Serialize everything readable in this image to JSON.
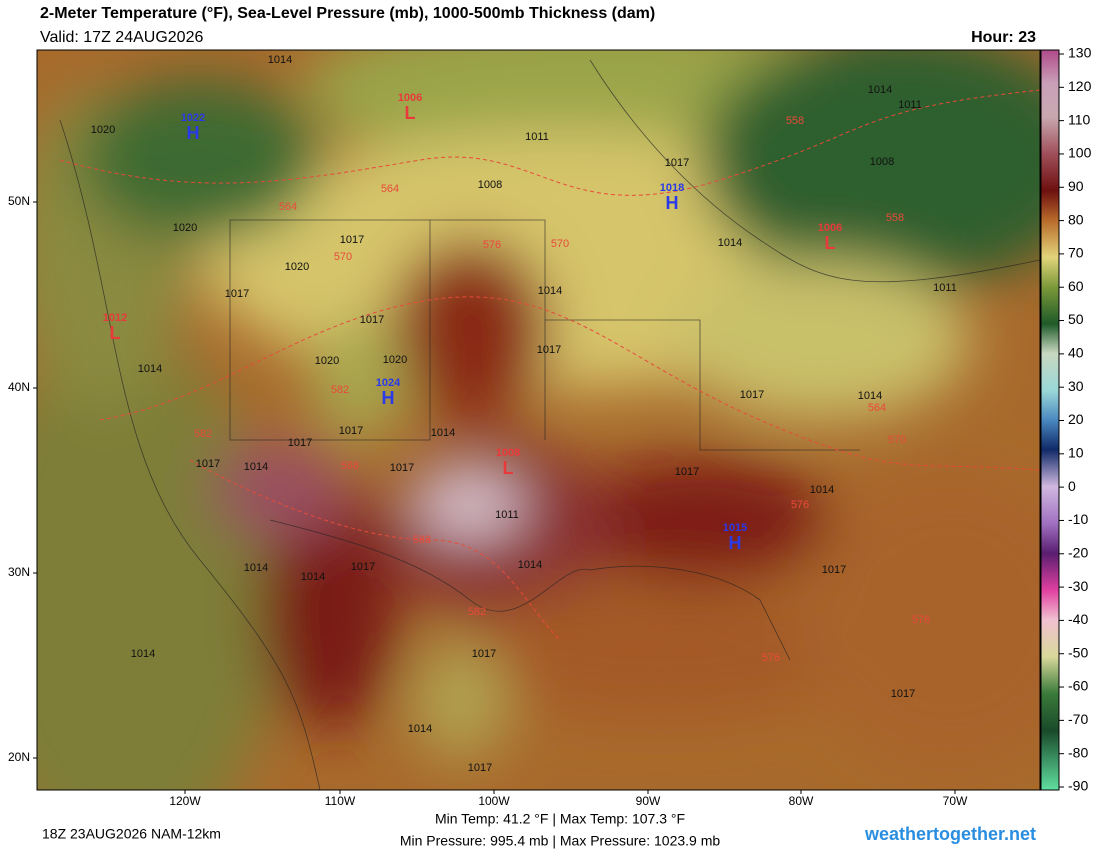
{
  "header": {
    "title": "2-Meter Temperature (°F), Sea-Level Pressure (mb), 1000-500mb Thickness (dam)",
    "valid": "Valid: 17Z 24AUG2026",
    "hour": "Hour: 23"
  },
  "colorbar": {
    "ticks": [
      130,
      120,
      110,
      100,
      90,
      80,
      70,
      60,
      50,
      40,
      30,
      20,
      10,
      0,
      -10,
      -20,
      -30,
      -40,
      -50,
      -60,
      -70,
      -80,
      -90
    ]
  },
  "axes": {
    "lat_labels": [
      "50N",
      "40N",
      "30N",
      "20N"
    ],
    "lon_labels": [
      "120W",
      "110W",
      "100W",
      "90W",
      "80W",
      "70W"
    ]
  },
  "centers": [
    {
      "pressure": "1022",
      "letter": "H"
    },
    {
      "pressure": "1006",
      "letter": "L"
    },
    {
      "pressure": "1018",
      "letter": "H"
    },
    {
      "pressure": "1006",
      "letter": "L"
    },
    {
      "pressure": "1012",
      "letter": "L"
    },
    {
      "pressure": "1024",
      "letter": "H"
    },
    {
      "pressure": "1008",
      "letter": "L"
    },
    {
      "pressure": "1015",
      "letter": "H"
    }
  ],
  "isobar_labels": [
    "1014",
    "1020",
    "1011",
    "1017",
    "1008",
    "1014",
    "1011",
    "1008",
    "1020",
    "1017",
    "1020",
    "1017",
    "1014",
    "1014",
    "1011",
    "1017",
    "1017",
    "1020",
    "1020",
    "1014",
    "1017",
    "1014",
    "1017",
    "1017",
    "1014",
    "1017",
    "1014",
    "1017",
    "1017",
    "1014",
    "1011",
    "1014",
    "1014",
    "1014",
    "1017",
    "1017",
    "1014",
    "1017",
    "1017",
    "1014",
    "1017"
  ],
  "thickness_labels": [
    "564",
    "564",
    "570",
    "576",
    "570",
    "558",
    "558",
    "582",
    "582",
    "588",
    "588",
    "582",
    "576",
    "570",
    "564",
    "576",
    "576"
  ],
  "footer": {
    "run": "18Z 23AUG2026 NAM-12km",
    "temps": "Min Temp:  41.2 °F | Max Temp: 107.3 °F",
    "pressure": "Min Pressure: 995.4 mb | Max Pressure: 1023.9 mb",
    "site": "weathertogether.net"
  }
}
